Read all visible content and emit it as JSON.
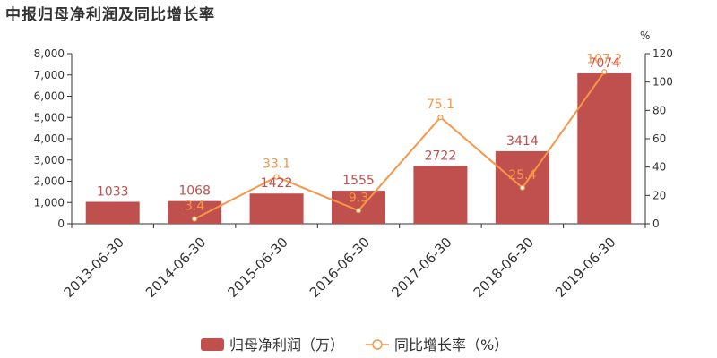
{
  "chart_data": {
    "type": "bar",
    "title": "中报归母净利润及同比增长率",
    "categories": [
      "2013-06-30",
      "2014-06-30",
      "2015-06-30",
      "2016-06-30",
      "2017-06-30",
      "2018-06-30",
      "2019-06-30"
    ],
    "series": [
      {
        "name": "归母净利润（万）",
        "type": "bar",
        "axis": "left",
        "color": "#c0504d",
        "values": [
          1033,
          1068,
          1422,
          1555,
          2722,
          3414,
          7074
        ]
      },
      {
        "name": "同比增长率（%）",
        "type": "line",
        "axis": "right",
        "color": "#f79646",
        "values": [
          null,
          3.4,
          33.1,
          9.3,
          75.1,
          25.4,
          107.2
        ]
      }
    ],
    "y_left": {
      "ylim": [
        0,
        8000
      ],
      "ticks": [
        0,
        1000,
        2000,
        3000,
        4000,
        5000,
        6000,
        7000,
        8000
      ],
      "tick_labels": [
        "0",
        "1,000",
        "2,000",
        "3,000",
        "4,000",
        "5,000",
        "6,000",
        "7,000",
        "8,000"
      ]
    },
    "y_right": {
      "label": "%",
      "ylim": [
        0,
        120
      ],
      "ticks": [
        0,
        20,
        40,
        60,
        80,
        100,
        120
      ],
      "tick_labels": [
        "0",
        "20",
        "40",
        "60",
        "80",
        "100",
        "120"
      ]
    },
    "legend_position": "bottom",
    "grid": false
  }
}
